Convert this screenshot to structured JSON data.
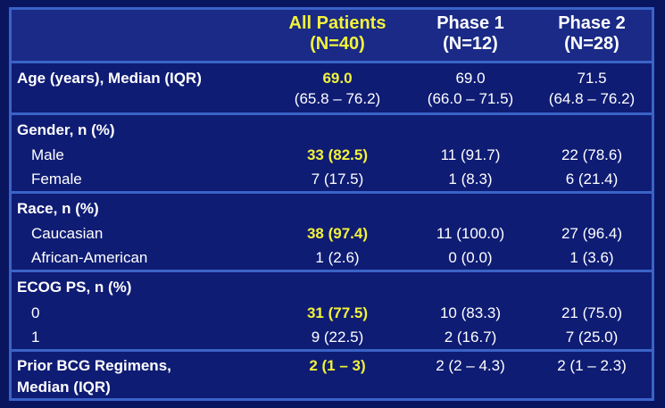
{
  "header": {
    "all_line1": "All Patients",
    "all_line2": "(N=40)",
    "p1_line1": "Phase 1",
    "p1_line2": "(N=12)",
    "p2_line1": "Phase 2",
    "p2_line2": "(N=28)"
  },
  "age": {
    "label": "Age (years), Median (IQR)",
    "all_median": "69.0",
    "all_iqr": "(65.8 – 76.2)",
    "p1_median": "69.0",
    "p1_iqr": "(66.0 – 71.5)",
    "p2_median": "71.5",
    "p2_iqr": "(64.8 – 76.2)"
  },
  "gender": {
    "label": "Gender, n (%)",
    "rows": [
      {
        "name": "Male",
        "all": "33 (82.5)",
        "p1": "11 (91.7)",
        "p2": "22 (78.6)"
      },
      {
        "name": "Female",
        "all": "7 (17.5)",
        "p1": "1 (8.3)",
        "p2": "6 (21.4)"
      }
    ]
  },
  "race": {
    "label": "Race, n (%)",
    "rows": [
      {
        "name": "Caucasian",
        "all": "38 (97.4)",
        "p1": "11 (100.0)",
        "p2": "27 (96.4)"
      },
      {
        "name": "African-American",
        "all": "1 (2.6)",
        "p1": "0 (0.0)",
        "p2": "1 (3.6)"
      }
    ]
  },
  "ecog": {
    "label": "ECOG PS, n (%)",
    "rows": [
      {
        "name": "0",
        "all": "31 (77.5)",
        "p1": "10 (83.3)",
        "p2": "21 (75.0)"
      },
      {
        "name": "1",
        "all": "9 (22.5)",
        "p1": "2 (16.7)",
        "p2": "7 (25.0)"
      }
    ]
  },
  "bcg": {
    "label_line1": "Prior BCG Regimens,",
    "label_line2": "Median (IQR)",
    "all": "2 (1 – 3)",
    "p1": "2 (2 – 4.3)",
    "p2": "2 (1 – 2.3)"
  }
}
